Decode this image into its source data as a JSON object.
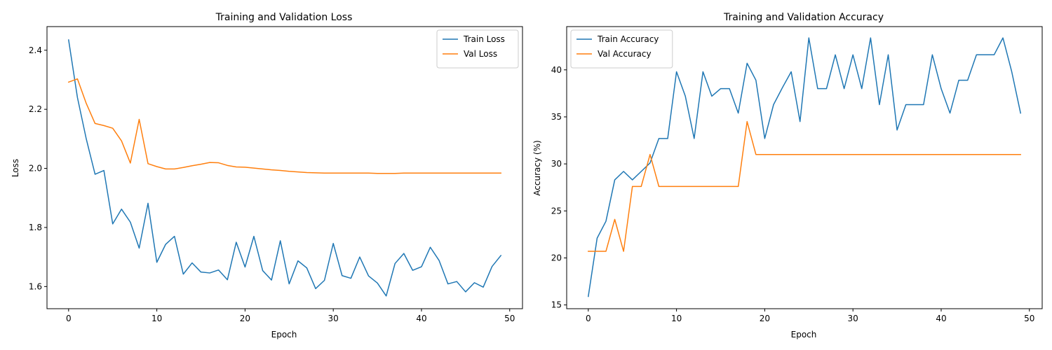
{
  "chart_data": [
    {
      "type": "line",
      "title": "Training and Validation Loss",
      "xlabel": "Epoch",
      "ylabel": "Loss",
      "xlim": [
        -2.45,
        51.45
      ],
      "ylim": [
        1.525,
        2.48
      ],
      "xticks": [
        0,
        10,
        20,
        30,
        40,
        50
      ],
      "yticks": [
        1.6,
        1.8,
        2.0,
        2.2,
        2.4
      ],
      "ytick_decimals": 1,
      "legend": "top-right",
      "grid": false,
      "x": [
        0,
        1,
        2,
        3,
        4,
        5,
        6,
        7,
        8,
        9,
        10,
        11,
        12,
        13,
        14,
        15,
        16,
        17,
        18,
        19,
        20,
        21,
        22,
        23,
        24,
        25,
        26,
        27,
        28,
        29,
        30,
        31,
        32,
        33,
        34,
        35,
        36,
        37,
        38,
        39,
        40,
        41,
        42,
        43,
        44,
        45,
        46,
        47,
        48,
        49
      ],
      "series": [
        {
          "name": "Train Loss",
          "color": "#1f77b4",
          "values": [
            2.435,
            2.24,
            2.1,
            1.98,
            1.993,
            1.812,
            1.862,
            1.818,
            1.73,
            1.882,
            1.682,
            1.743,
            1.77,
            1.642,
            1.68,
            1.649,
            1.646,
            1.656,
            1.623,
            1.75,
            1.666,
            1.77,
            1.654,
            1.622,
            1.755,
            1.609,
            1.687,
            1.663,
            1.593,
            1.621,
            1.746,
            1.637,
            1.628,
            1.7,
            1.636,
            1.612,
            1.568,
            1.678,
            1.712,
            1.655,
            1.667,
            1.733,
            1.688,
            1.609,
            1.617,
            1.582,
            1.613,
            1.598,
            1.668,
            1.705
          ]
        },
        {
          "name": "Val Loss",
          "color": "#ff7f0e",
          "values": [
            2.292,
            2.303,
            2.22,
            2.152,
            2.145,
            2.136,
            2.093,
            2.018,
            2.166,
            2.016,
            2.006,
            1.998,
            1.998,
            2.003,
            2.009,
            2.014,
            2.02,
            2.019,
            2.01,
            2.005,
            2.004,
            2.001,
            1.998,
            1.995,
            1.993,
            1.99,
            1.988,
            1.986,
            1.985,
            1.984,
            1.984,
            1.984,
            1.984,
            1.984,
            1.984,
            1.983,
            1.983,
            1.983,
            1.984,
            1.984,
            1.984,
            1.984,
            1.984,
            1.984,
            1.984,
            1.984,
            1.984,
            1.984,
            1.984,
            1.984
          ]
        }
      ]
    },
    {
      "type": "line",
      "title": "Training and Validation Accuracy",
      "xlabel": "Epoch",
      "ylabel": "Accuracy (%)",
      "xlim": [
        -2.45,
        51.45
      ],
      "ylim": [
        14.6,
        44.6
      ],
      "xticks": [
        0,
        10,
        20,
        30,
        40,
        50
      ],
      "yticks": [
        15,
        20,
        25,
        30,
        35,
        40
      ],
      "ytick_decimals": 0,
      "legend": "top-left",
      "grid": false,
      "x": [
        0,
        1,
        2,
        3,
        4,
        5,
        6,
        7,
        8,
        9,
        10,
        11,
        12,
        13,
        14,
        15,
        16,
        17,
        18,
        19,
        20,
        21,
        22,
        23,
        24,
        25,
        26,
        27,
        28,
        29,
        30,
        31,
        32,
        33,
        34,
        35,
        36,
        37,
        38,
        39,
        40,
        41,
        42,
        43,
        44,
        45,
        46,
        47,
        48,
        49
      ],
      "series": [
        {
          "name": "Train Accuracy",
          "color": "#1f77b4",
          "values": [
            15.9,
            22.1,
            23.9,
            28.3,
            29.2,
            28.3,
            29.2,
            30.1,
            32.7,
            32.7,
            39.8,
            37.2,
            32.7,
            39.8,
            37.2,
            38.0,
            38.0,
            35.4,
            40.7,
            38.9,
            32.7,
            36.3,
            38.1,
            39.8,
            34.5,
            43.4,
            38.0,
            38.0,
            41.6,
            38.0,
            41.6,
            38.0,
            43.4,
            36.3,
            41.6,
            33.6,
            36.3,
            36.3,
            36.3,
            41.6,
            38.0,
            35.4,
            38.9,
            38.9,
            41.6,
            41.6,
            41.6,
            43.4,
            39.8,
            35.4
          ]
        },
        {
          "name": "Val Accuracy",
          "color": "#ff7f0e",
          "values": [
            20.7,
            20.7,
            20.7,
            24.1,
            20.7,
            27.6,
            27.6,
            31.0,
            27.6,
            27.6,
            27.6,
            27.6,
            27.6,
            27.6,
            27.6,
            27.6,
            27.6,
            27.6,
            34.5,
            31.0,
            31.0,
            31.0,
            31.0,
            31.0,
            31.0,
            31.0,
            31.0,
            31.0,
            31.0,
            31.0,
            31.0,
            31.0,
            31.0,
            31.0,
            31.0,
            31.0,
            31.0,
            31.0,
            31.0,
            31.0,
            31.0,
            31.0,
            31.0,
            31.0,
            31.0,
            31.0,
            31.0,
            31.0,
            31.0,
            31.0
          ]
        }
      ]
    }
  ]
}
